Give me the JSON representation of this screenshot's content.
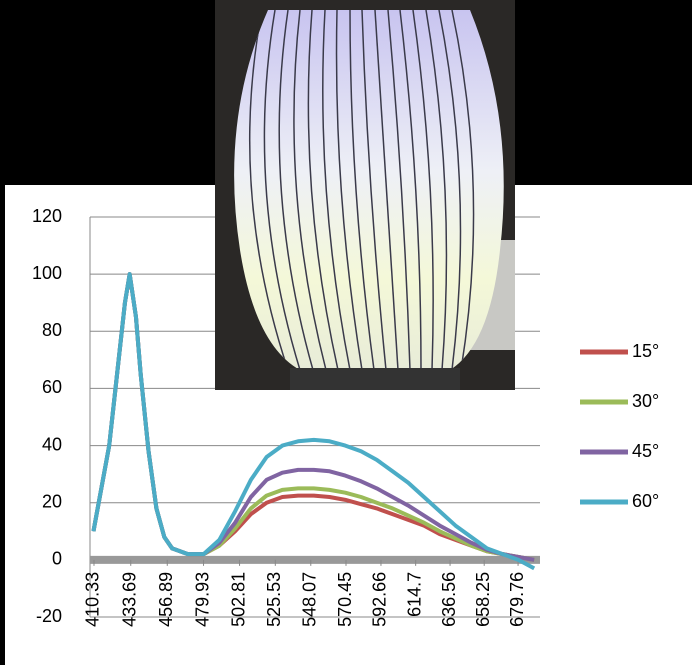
{
  "chart_data": {
    "type": "line",
    "x": [
      410,
      415,
      420,
      425,
      430,
      433,
      437,
      440,
      445,
      450,
      455,
      460,
      470,
      480,
      490,
      500,
      510,
      520,
      530,
      540,
      550,
      560,
      570,
      580,
      590,
      600,
      610,
      620,
      630,
      640,
      650,
      660,
      670,
      680,
      690
    ],
    "series": [
      {
        "name": "15°",
        "color": "#c0504d",
        "values": [
          10,
          25,
          40,
          65,
          90,
          100,
          85,
          65,
          38,
          18,
          8,
          4,
          2,
          2,
          5,
          10,
          16,
          20,
          22,
          22.5,
          22.5,
          22,
          21,
          19.5,
          18,
          16,
          14,
          12,
          9,
          7,
          5,
          3,
          2,
          1,
          0
        ]
      },
      {
        "name": "30°",
        "color": "#9bbb59",
        "values": [
          10,
          25,
          40,
          65,
          90,
          100,
          85,
          65,
          38,
          18,
          8,
          4,
          2,
          2,
          5,
          11,
          18,
          22.5,
          24.5,
          25,
          25,
          24.5,
          23.5,
          22,
          20,
          18,
          15.5,
          13,
          10,
          7.5,
          5,
          3,
          2,
          1,
          0
        ]
      },
      {
        "name": "45°",
        "color": "#8064a2",
        "values": [
          10,
          25,
          40,
          65,
          90,
          100,
          85,
          65,
          38,
          18,
          8,
          4,
          2,
          2,
          6,
          13,
          22,
          28,
          30.5,
          31.5,
          31.5,
          31,
          29.5,
          27.5,
          25,
          22,
          19,
          15.5,
          12,
          9,
          6,
          3.5,
          2,
          1,
          0
        ]
      },
      {
        "name": "60°",
        "color": "#4bacc6",
        "values": [
          10,
          25,
          40,
          65,
          90,
          100,
          85,
          65,
          38,
          18,
          8,
          4,
          2,
          2,
          7,
          17,
          28,
          36,
          40,
          41.5,
          42,
          41.5,
          40,
          38,
          35,
          31,
          27,
          22,
          17,
          12,
          8,
          4,
          2,
          0,
          -3
        ]
      }
    ],
    "xlim": [
      407.8,
      693.7
    ],
    "xticks": [
      410.33,
      433.69,
      456.89,
      479.93,
      502.81,
      525.53,
      548.07,
      570.45,
      592.66,
      614.7,
      636.56,
      658.25,
      679.76
    ],
    "ylim": [
      -20,
      120
    ],
    "yticks": [
      -20,
      0,
      20,
      40,
      60,
      80,
      100,
      120
    ],
    "grid": true
  }
}
